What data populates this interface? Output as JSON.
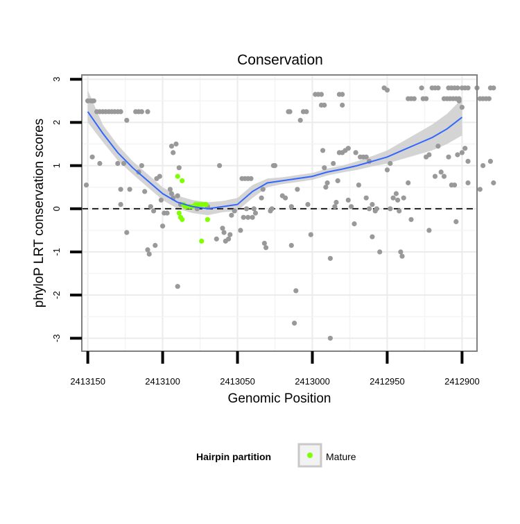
{
  "chart_data": {
    "type": "scatter",
    "title": "Conservation",
    "xlabel": "Genomic Position",
    "ylabel": "phyloP LRT conservation scores",
    "x_reversed": true,
    "xlim": [
      2413154,
      2412890
    ],
    "ylim": [
      -3.3,
      3.1
    ],
    "x_ticks": [
      2413150,
      2413100,
      2413050,
      2413000,
      2412950,
      2412900
    ],
    "x_tick_labels": [
      "2413150",
      "2413100",
      "2413050",
      "2413000",
      "2412950",
      "2412900"
    ],
    "y_ticks": [
      -3,
      -2,
      -1,
      0,
      1,
      2,
      3
    ],
    "y_tick_labels": [
      "-3",
      "-2",
      "-1",
      "0",
      "1",
      "2",
      "3"
    ],
    "grid": true,
    "reference_line": {
      "y": 0,
      "style": "dashed",
      "color": "#000000"
    },
    "legend": {
      "title": "Hairpin partition",
      "placement": "bottom",
      "entries": [
        {
          "label": "Mature",
          "color": "#7fff00"
        }
      ]
    },
    "colors": {
      "other": "#999999",
      "mature": "#7fff00",
      "smooth": "#3366ff",
      "band": "#cccccc"
    },
    "series": [
      {
        "label": "",
        "color": "#999999",
        "points": [
          [
            2413150,
            2.5
          ],
          [
            2413148,
            2.5
          ],
          [
            2413147,
            2.5
          ],
          [
            2413146,
            2.5
          ],
          [
            2413147,
            1.2
          ],
          [
            2413151,
            0.55
          ],
          [
            2413142,
            1.05
          ],
          [
            2413144,
            2.25
          ],
          [
            2413142,
            2.25
          ],
          [
            2413140,
            2.25
          ],
          [
            2413138,
            2.25
          ],
          [
            2413136,
            2.25
          ],
          [
            2413134,
            2.25
          ],
          [
            2413132,
            2.25
          ],
          [
            2413130,
            2.25
          ],
          [
            2413128,
            2.25
          ],
          [
            2413124,
            2.05
          ],
          [
            2413118,
            2.25
          ],
          [
            2413116,
            2.25
          ],
          [
            2413114,
            2.25
          ],
          [
            2413110,
            2.25
          ],
          [
            2413130,
            1.05
          ],
          [
            2413128,
            0.45
          ],
          [
            2413126,
            1.05
          ],
          [
            2413128,
            0.1
          ],
          [
            2413122,
            0.45
          ],
          [
            2413124,
            -0.55
          ],
          [
            2413116,
            0.85
          ],
          [
            2413114,
            1.0
          ],
          [
            2413112,
            0.4
          ],
          [
            2413110,
            -0.95
          ],
          [
            2413109,
            -1.05
          ],
          [
            2413108,
            0.05
          ],
          [
            2413106,
            -0.05
          ],
          [
            2413105,
            -0.85
          ],
          [
            2413104,
            0.7
          ],
          [
            2413102,
            0.75
          ],
          [
            2413101,
            0.2
          ],
          [
            2413100,
            -0.4
          ],
          [
            2413099,
            -0.1
          ],
          [
            2413097,
            -0.1
          ],
          [
            2413094,
            1.45
          ],
          [
            2413093,
            1.3
          ],
          [
            2413091,
            1.5
          ],
          [
            2413095,
            0.45
          ],
          [
            2413094,
            0.35
          ],
          [
            2413093,
            0.25
          ],
          [
            2413090,
            0.3
          ],
          [
            2413089,
            0.95
          ],
          [
            2413088,
            0.1
          ],
          [
            2413090,
            -1.8
          ],
          [
            2413080,
            0.05
          ],
          [
            2413077,
            0.0
          ],
          [
            2413070,
            0.05
          ],
          [
            2413064,
            -0.7
          ],
          [
            2413062,
            1.0
          ],
          [
            2413060,
            -0.45
          ],
          [
            2413058,
            -0.75
          ],
          [
            2413059,
            -0.55
          ],
          [
            2413056,
            -0.7
          ],
          [
            2413055,
            -0.6
          ],
          [
            2413054,
            -0.15
          ],
          [
            2413052,
            -0.05
          ],
          [
            2413048,
            -0.5
          ],
          [
            2413047,
            0.7
          ],
          [
            2413045,
            0.7
          ],
          [
            2413043,
            0.7
          ],
          [
            2413041,
            0.7
          ],
          [
            2413046,
            -0.2
          ],
          [
            2413043,
            -0.2
          ],
          [
            2413040,
            -0.2
          ],
          [
            2413044,
            0.0
          ],
          [
            2413039,
            0.0
          ],
          [
            2413038,
            -0.1
          ],
          [
            2413034,
            0.25
          ],
          [
            2413033,
            0.45
          ],
          [
            2413032,
            -0.8
          ],
          [
            2413031,
            -0.9
          ],
          [
            2413028,
            -0.05
          ],
          [
            2413027,
            0.0
          ],
          [
            2413026,
            1.0
          ],
          [
            2413025,
            1.0
          ],
          [
            2413020,
            0.3
          ],
          [
            2413018,
            0.25
          ],
          [
            2413016,
            2.25
          ],
          [
            2413015,
            2.25
          ],
          [
            2413014,
            0.05
          ],
          [
            2413014,
            -0.85
          ],
          [
            2413012,
            -2.65
          ],
          [
            2413011,
            -1.9
          ],
          [
            2413010,
            0.45
          ],
          [
            2413008,
            2.05
          ],
          [
            2413006,
            2.25
          ],
          [
            2413004,
            2.25
          ],
          [
            2413003,
            0.1
          ],
          [
            2413001,
            -0.6
          ],
          [
            2412998,
            2.65
          ],
          [
            2412996,
            2.65
          ],
          [
            2412994,
            2.65
          ],
          [
            2412994,
            2.4
          ],
          [
            2412992,
            2.4
          ],
          [
            2412993,
            1.35
          ],
          [
            2412992,
            0.95
          ],
          [
            2412991,
            0.5
          ],
          [
            2412990,
            0.6
          ],
          [
            2412988,
            -1.15
          ],
          [
            2412988,
            -3.0
          ],
          [
            2412986,
            1.05
          ],
          [
            2412985,
            0.05
          ],
          [
            2412983,
            0.65
          ],
          [
            2412984,
            0.15
          ],
          [
            2412982,
            2.65
          ],
          [
            2412980,
            2.65
          ],
          [
            2412980,
            2.4
          ],
          [
            2412982,
            1.3
          ],
          [
            2412980,
            1.3
          ],
          [
            2412978,
            1.35
          ],
          [
            2412976,
            1.4
          ],
          [
            2412974,
            0.05
          ],
          [
            2412976,
            0.2
          ],
          [
            2412971,
            1.3
          ],
          [
            2412972,
            -0.35
          ],
          [
            2412969,
            0.55
          ],
          [
            2412968,
            1.2
          ],
          [
            2412966,
            1.2
          ],
          [
            2412964,
            1.2
          ],
          [
            2412962,
            1.1
          ],
          [
            2412964,
            0.25
          ],
          [
            2412962,
            0.0
          ],
          [
            2412960,
            0.1
          ],
          [
            2412960,
            -0.65
          ],
          [
            2412958,
            -0.05
          ],
          [
            2412957,
            0.0
          ],
          [
            2412955,
            -1.0
          ],
          [
            2412952,
            2.8
          ],
          [
            2412950,
            2.75
          ],
          [
            2412950,
            0.9
          ],
          [
            2412948,
            1.05
          ],
          [
            2412948,
            0.0
          ],
          [
            2412946,
            0.25
          ],
          [
            2412944,
            0.35
          ],
          [
            2412943,
            0.2
          ],
          [
            2412942,
            -0.05
          ],
          [
            2412941,
            -1.0
          ],
          [
            2412940,
            -1.1
          ],
          [
            2412939,
            0.25
          ],
          [
            2412936,
            2.55
          ],
          [
            2412934,
            2.55
          ],
          [
            2412932,
            2.55
          ],
          [
            2412936,
            0.6
          ],
          [
            2412934,
            -0.25
          ],
          [
            2412927,
            2.8
          ],
          [
            2412926,
            2.55
          ],
          [
            2412924,
            2.55
          ],
          [
            2412924,
            1.2
          ],
          [
            2412922,
            1.25
          ],
          [
            2412922,
            -0.5
          ],
          [
            2412920,
            2.8
          ],
          [
            2412918,
            2.8
          ],
          [
            2412916,
            2.8
          ],
          [
            2412918,
            0.75
          ],
          [
            2412916,
            1.45
          ],
          [
            2412914,
            0.85
          ],
          [
            2412912,
            2.55
          ],
          [
            2412910,
            2.55
          ],
          [
            2412908,
            2.55
          ],
          [
            2412906,
            2.55
          ],
          [
            2412904,
            2.55
          ],
          [
            2412902,
            2.55
          ],
          [
            2412900,
            2.8
          ],
          [
            2412898,
            2.8
          ],
          [
            2412896,
            2.8
          ],
          [
            2412909,
            2.8
          ],
          [
            2412907,
            2.8
          ],
          [
            2412905,
            2.8
          ],
          [
            2412903,
            2.8
          ],
          [
            2412912,
            0.75
          ],
          [
            2412909,
            1.2
          ],
          [
            2412907,
            0.55
          ],
          [
            2412905,
            0.55
          ],
          [
            2412900,
            2.35
          ],
          [
            2412900,
            1.3
          ],
          [
            2412898,
            1.4
          ],
          [
            2412896,
            1.1
          ],
          [
            2412896,
            0.6
          ],
          [
            2412903,
            1.25
          ],
          [
            2412904,
            -0.3
          ],
          [
            2412902,
            2.5
          ],
          [
            2412890,
            2.8
          ],
          [
            2412888,
            2.55
          ],
          [
            2412886,
            2.55
          ],
          [
            2412884,
            2.55
          ],
          [
            2412882,
            2.55
          ],
          [
            2412881,
            2.8
          ],
          [
            2412879,
            2.8
          ],
          [
            2412881,
            1.1
          ],
          [
            2412879,
            0.6
          ],
          [
            2412886,
            1.0
          ],
          [
            2412888,
            0.45
          ]
        ]
      },
      {
        "label": "Mature",
        "color": "#7fff00",
        "points": [
          [
            2413090,
            0.75
          ],
          [
            2413087,
            0.65
          ],
          [
            2413089,
            -0.1
          ],
          [
            2413088,
            -0.2
          ],
          [
            2413087,
            -0.25
          ],
          [
            2413086,
            0.1
          ],
          [
            2413085,
            0.05
          ],
          [
            2413084,
            0.05
          ],
          [
            2413082,
            0.05
          ],
          [
            2413080,
            0.05
          ],
          [
            2413078,
            0.1
          ],
          [
            2413076,
            0.1
          ],
          [
            2413074,
            0.1
          ],
          [
            2413072,
            0.1
          ],
          [
            2413071,
            0.1
          ],
          [
            2413074,
            -0.75
          ],
          [
            2413070,
            -0.25
          ]
        ]
      }
    ],
    "smooth": {
      "x": [
        2413150,
        2413140,
        2413130,
        2413120,
        2413110,
        2413100,
        2413090,
        2413080,
        2413070,
        2413060,
        2413050,
        2413040,
        2413030,
        2413020,
        2413010,
        2413000,
        2412990,
        2412980,
        2412970,
        2412960,
        2412950,
        2412940,
        2412930,
        2412920,
        2412910,
        2412900
      ],
      "y": [
        2.25,
        1.75,
        1.3,
        0.95,
        0.65,
        0.35,
        0.15,
        0.05,
        0.0,
        0.05,
        0.1,
        0.4,
        0.6,
        0.65,
        0.7,
        0.75,
        0.85,
        0.92,
        1.0,
        1.1,
        1.2,
        1.35,
        1.5,
        1.65,
        1.85,
        2.12
      ],
      "lower": [
        2.0,
        1.55,
        1.12,
        0.8,
        0.5,
        0.2,
        0.0,
        -0.1,
        -0.15,
        -0.08,
        -0.05,
        0.25,
        0.5,
        0.57,
        0.62,
        0.67,
        0.77,
        0.84,
        0.9,
        0.98,
        1.05,
        1.15,
        1.25,
        1.35,
        1.5,
        1.7
      ],
      "upper": [
        2.75,
        1.95,
        1.48,
        1.1,
        0.8,
        0.5,
        0.3,
        0.2,
        0.15,
        0.18,
        0.25,
        0.55,
        0.7,
        0.73,
        0.78,
        0.83,
        0.93,
        1.0,
        1.1,
        1.22,
        1.35,
        1.55,
        1.75,
        1.95,
        2.2,
        2.55
      ]
    }
  }
}
